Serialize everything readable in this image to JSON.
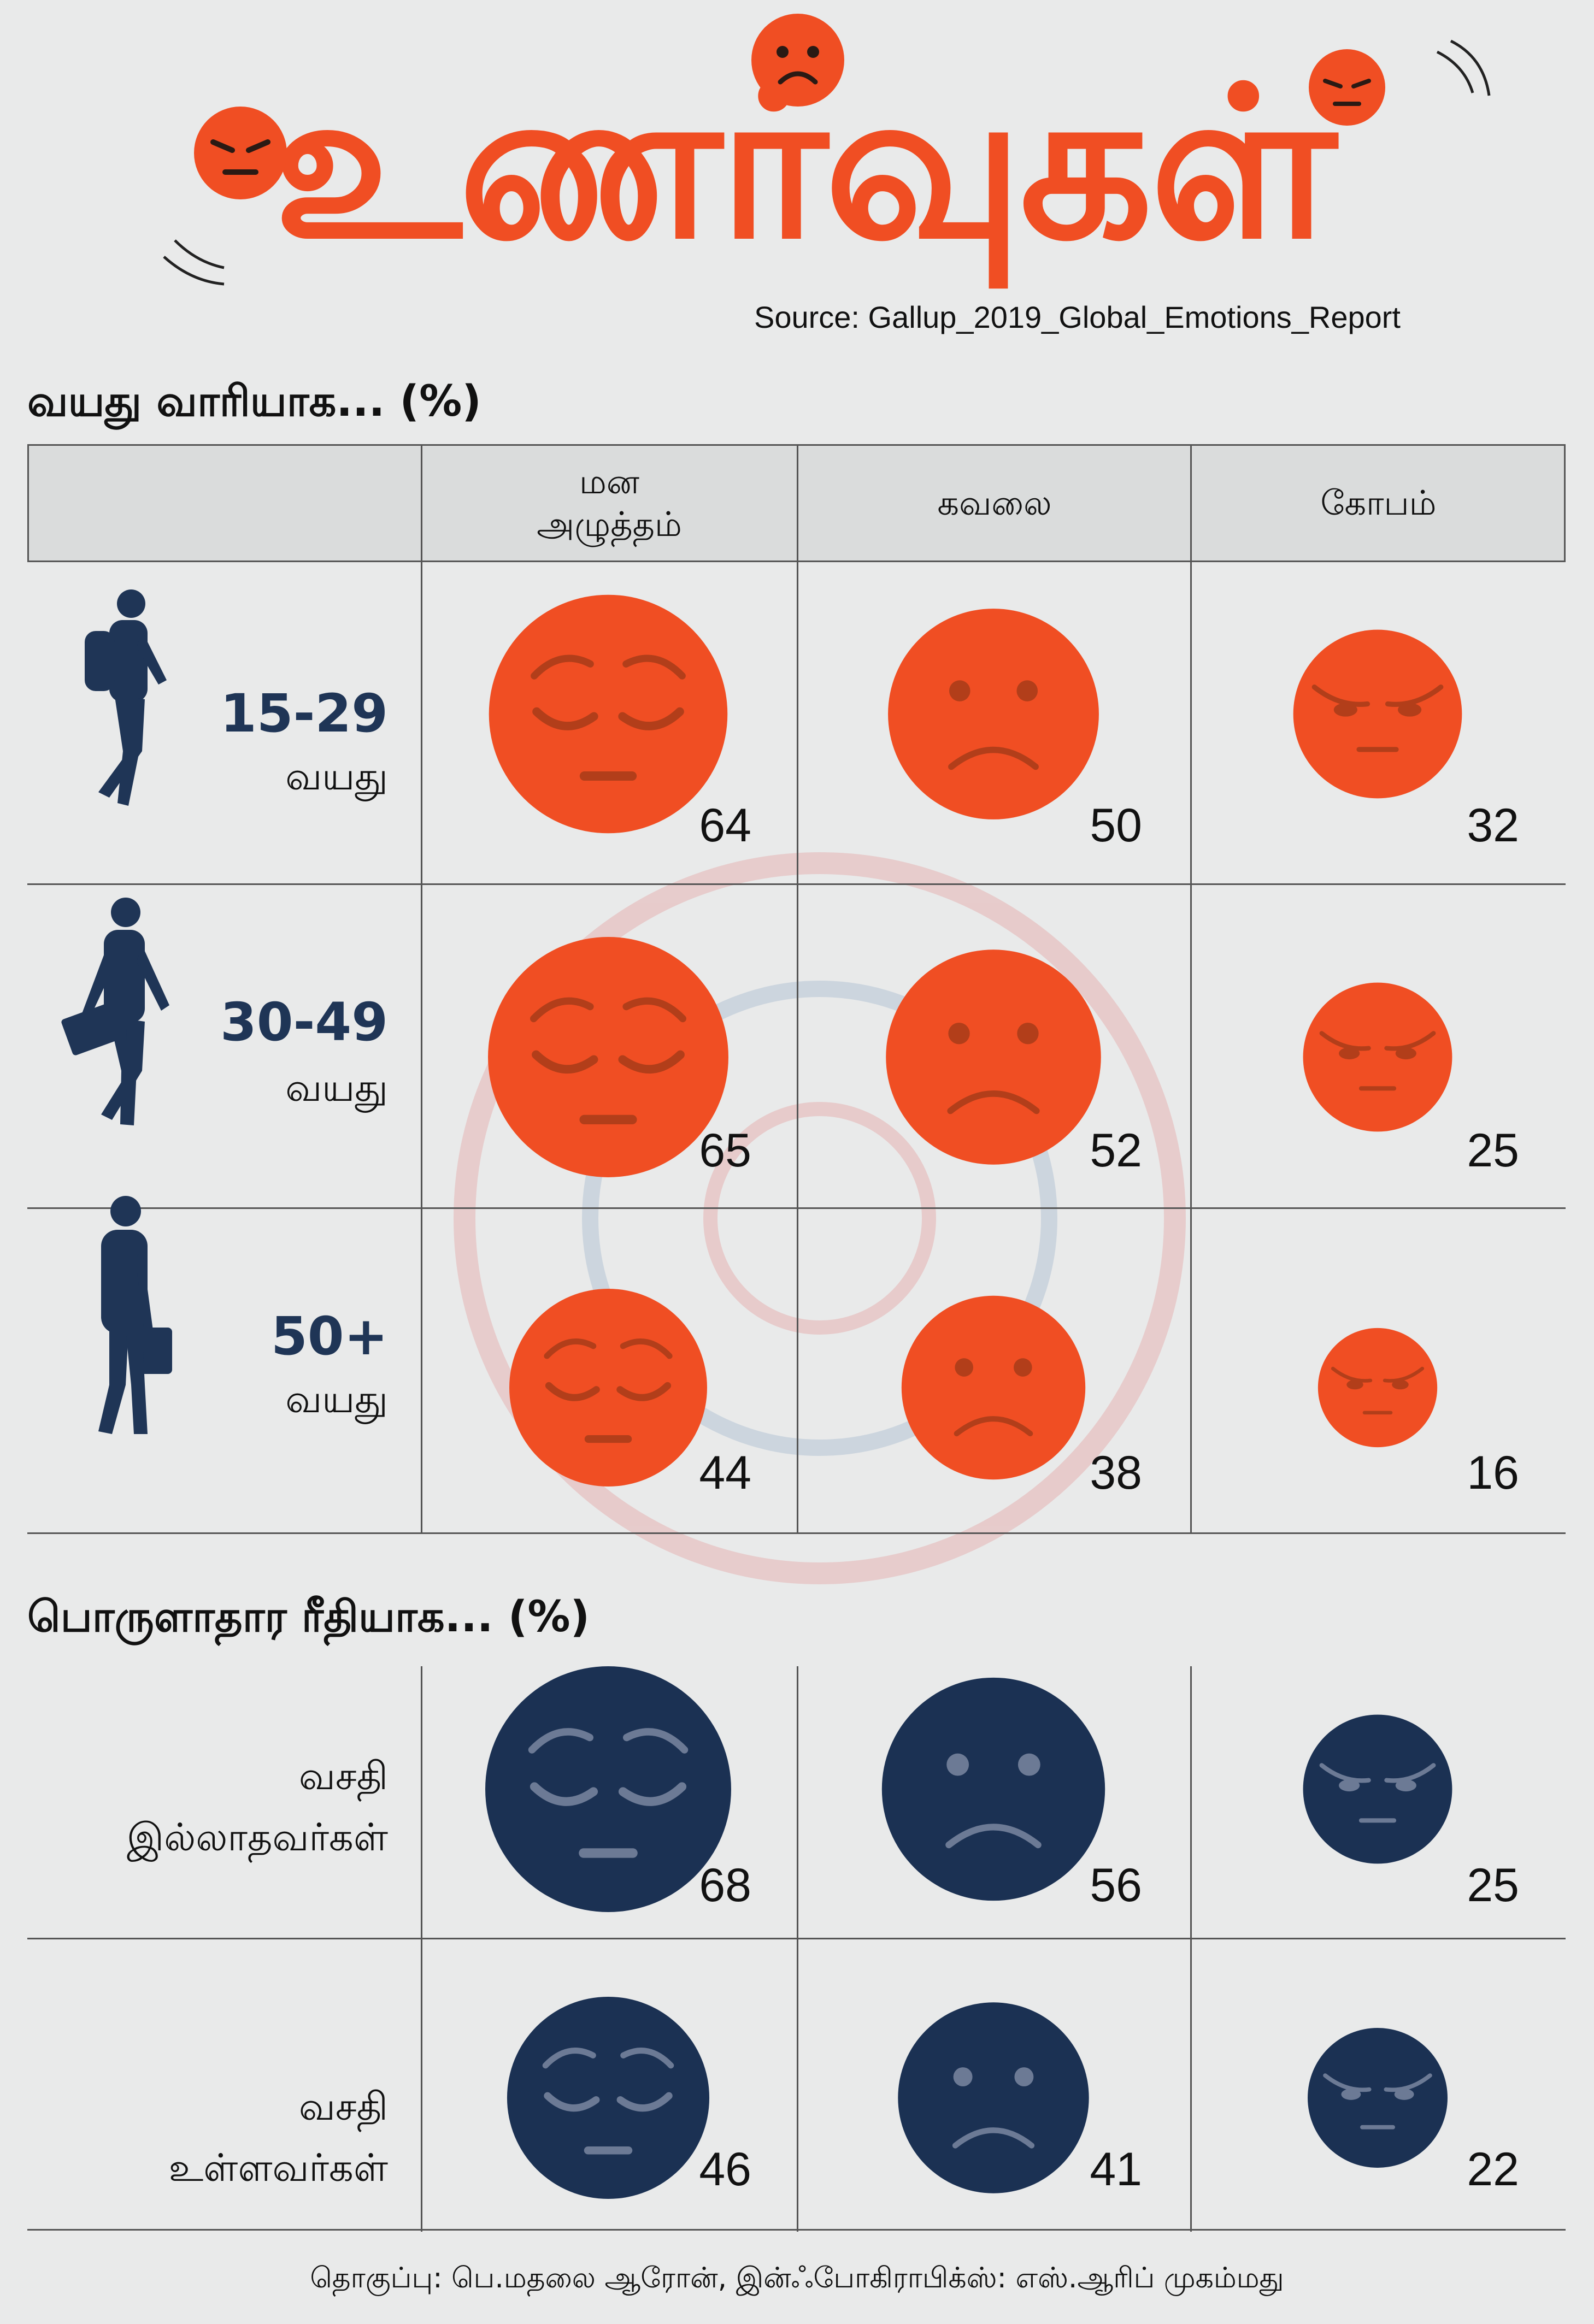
{
  "title": "உணர்வுகள்",
  "source": "Source: Gallup_2019_Global_Emotions_Report",
  "colors": {
    "orange": "#f04e23",
    "navy": "#1b3153",
    "bg": "#e9eaea"
  },
  "age_section": {
    "title": "வயது வாரியாக... (%)",
    "headers": [
      "மன அழுத்தம்",
      "கவலை",
      "கோபம்"
    ],
    "header_lines": [
      [
        "மன",
        "அழுத்தம்"
      ],
      [
        "கவலை"
      ],
      [
        "கோபம்"
      ]
    ],
    "rows": [
      {
        "age": "15-29",
        "unit": "வயது",
        "values": [
          64,
          50,
          32
        ],
        "icon": "walking-youth-icon"
      },
      {
        "age": "30-49",
        "unit": "வயது",
        "values": [
          65,
          52,
          25
        ],
        "icon": "walking-man-briefcase-icon"
      },
      {
        "age": "50+",
        "unit": "வயது",
        "values": [
          44,
          38,
          16
        ],
        "icon": "walking-elder-briefcase-icon"
      }
    ]
  },
  "econ_section": {
    "title": "பொருளாதார ரீதியாக... (%)",
    "rows": [
      {
        "label_lines": [
          "வசதி",
          "இல்லாதவர்கள்"
        ],
        "values": [
          68,
          56,
          25
        ]
      },
      {
        "label_lines": [
          "வசதி",
          "உள்ளவர்கள்"
        ],
        "values": [
          46,
          41,
          22
        ]
      }
    ]
  },
  "credit": "தொகுப்பு: பெ.மதலை ஆரோன், இன்ஃபோகிராபிக்ஸ்: எஸ்.ஆரிப் முகம்மது",
  "chart_data": {
    "type": "table",
    "title": "உணர்வுகள்",
    "columns": [
      "மன அழுத்தம்",
      "கவலை",
      "கோபம்"
    ],
    "unit": "%",
    "groups": [
      {
        "name": "வயது வாரியாக",
        "categories": [
          "15-29 வயது",
          "30-49 வயது",
          "50+ வயது"
        ],
        "series": [
          {
            "name": "மன அழுத்தம்",
            "values": [
              64,
              65,
              44
            ]
          },
          {
            "name": "கவலை",
            "values": [
              50,
              52,
              38
            ]
          },
          {
            "name": "கோபம்",
            "values": [
              32,
              25,
              16
            ]
          }
        ]
      },
      {
        "name": "பொருளாதார ரீதியாக",
        "categories": [
          "வசதி இல்லாதவர்கள்",
          "வசதி உள்ளவர்கள்"
        ],
        "series": [
          {
            "name": "மன அழுத்தம்",
            "values": [
              68,
              46
            ]
          },
          {
            "name": "கவலை",
            "values": [
              56,
              41
            ]
          },
          {
            "name": "கோபம்",
            "values": [
              25,
              22
            ]
          }
        ]
      }
    ],
    "xlabel": "",
    "ylabel": "%"
  }
}
